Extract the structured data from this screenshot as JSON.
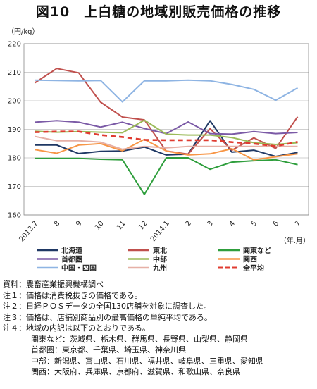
{
  "title": "図10　上白糖の地域別販売価格の推移",
  "chart_data": {
    "type": "line",
    "ylabel": "（円/kg）",
    "xlabel": "（年.月）",
    "ylim": [
      160,
      220
    ],
    "yticks": [
      160,
      170,
      180,
      190,
      200,
      210,
      220
    ],
    "grid": true,
    "legend_position": "bottom",
    "categories": [
      "2013.7",
      "8",
      "9",
      "10",
      "11",
      "12",
      "2014.1",
      "2",
      "3",
      "4",
      "5",
      "6",
      "7"
    ],
    "series": [
      {
        "name": "北海道",
        "color": "#1f3864",
        "dash": false,
        "values": [
          184.5,
          184.5,
          181.5,
          182.3,
          182.4,
          183.8,
          181.0,
          181.3,
          193.0,
          182.0,
          182.7,
          180.5,
          181.9
        ]
      },
      {
        "name": "東北",
        "color": "#c0504d",
        "dash": false,
        "values": [
          206.3,
          211.3,
          209.8,
          199.5,
          194.3,
          193.3,
          182.4,
          181.3,
          190.2,
          182.7,
          187.0,
          183.3,
          194.4
        ]
      },
      {
        "name": "関東など",
        "color": "#2e9e3c",
        "dash": false,
        "values": [
          179.8,
          179.8,
          179.8,
          179.5,
          179.3,
          167.2,
          180.0,
          180.0,
          176.0,
          178.5,
          179.0,
          179.3,
          177.6
        ]
      },
      {
        "name": "首都圏",
        "color": "#7b5aa6",
        "dash": false,
        "values": [
          192.5,
          193.0,
          192.5,
          190.8,
          192.5,
          190.3,
          188.5,
          192.6,
          188.5,
          188.3,
          189.2,
          188.5,
          188.9
        ]
      },
      {
        "name": "中部",
        "color": "#9bbb59",
        "dash": false,
        "values": [
          189.3,
          189.0,
          189.2,
          189.0,
          188.8,
          193.2,
          188.3,
          188.0,
          188.0,
          187.1,
          185.3,
          184.7,
          185.3
        ]
      },
      {
        "name": "関西",
        "color": "#f79646",
        "dash": false,
        "values": [
          182.9,
          181.6,
          184.5,
          185.0,
          182.5,
          186.5,
          182.4,
          181.0,
          181.4,
          183.2,
          179.3,
          180.4,
          181.4
        ]
      },
      {
        "name": "中国・四国",
        "color": "#8eb4e3",
        "dash": false,
        "values": [
          207.2,
          207.1,
          207.0,
          207.1,
          199.6,
          207.0,
          207.0,
          207.2,
          207.0,
          205.7,
          204.0,
          200.2,
          204.5
        ]
      },
      {
        "name": "九州",
        "color": "#e6b0a6",
        "dash": false,
        "values": [
          187.5,
          186.0,
          186.0,
          185.5,
          183.0,
          184.0,
          183.5,
          184.0,
          184.0,
          184.0,
          184.0,
          184.0,
          184.0
        ]
      },
      {
        "name": "全平均",
        "color": "#e03c31",
        "dash": true,
        "values": [
          189.0,
          189.2,
          189.2,
          188.0,
          187.3,
          186.3,
          186.2,
          186.2,
          186.2,
          185.5,
          185.0,
          184.1,
          185.6
        ]
      }
    ]
  },
  "notes": [
    "資料：農畜産業振興機構調べ",
    "注１：価格は消費税抜きの価格である。",
    "注２：日経ＰＯＳデータの全国130店舗を対象に調査した。",
    "注３：価格は、店舗別商品別の最高価格の単純平均である。",
    "注４：地域の内訳は以下のとおりである。"
  ],
  "region_notes": [
    "関東など：茨城県、栃木県、群馬県、長野県、山梨県、静岡県",
    "首都圏：東京都、千葉県、埼玉県、神奈川県",
    "中部：新潟県、富山県、石川県、福井県、岐阜県、三重県、愛知県",
    "関西：大阪府、兵庫県、京都府、滋賀県、和歌山県、奈良県"
  ]
}
